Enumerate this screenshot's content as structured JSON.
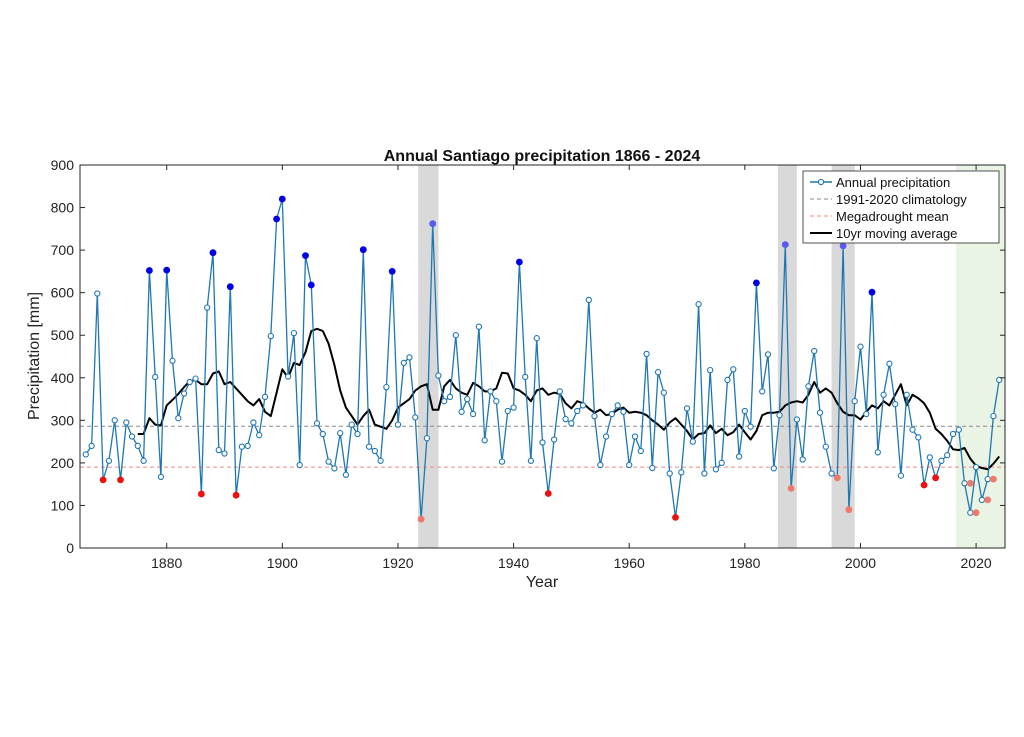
{
  "chart_data": {
    "type": "line",
    "title": "Annual Santiago precipitation 1866 - 2024",
    "xlabel": "Year",
    "ylabel": "Precipitation [mm]",
    "xlim": [
      1865,
      2025
    ],
    "ylim": [
      0,
      900
    ],
    "xticks": [
      1880,
      1900,
      1920,
      1940,
      1960,
      1980,
      2000,
      2020
    ],
    "yticks": [
      0,
      100,
      200,
      300,
      400,
      500,
      600,
      700,
      800,
      900
    ],
    "grid": false,
    "legend_position": "top-right",
    "legend": [
      "Annual precipitation",
      "1991-2020 climatology",
      "Megadrought mean",
      "10yr moving average"
    ],
    "climatology_mm": 286,
    "megadrought_mean_mm": 190,
    "shaded_periods": [
      {
        "start": 1923.5,
        "end": 1927,
        "color": "#d9d9d9"
      },
      {
        "start": 1985.7,
        "end": 1989,
        "color": "#d9d9d9"
      },
      {
        "start": 1995,
        "end": 1999,
        "color": "#d9d9d9"
      },
      {
        "start": 2016.5,
        "end": 2025,
        "color": "#e9f4e4"
      }
    ],
    "years": [
      1866,
      1867,
      1868,
      1869,
      1870,
      1871,
      1872,
      1873,
      1874,
      1875,
      1876,
      1877,
      1878,
      1879,
      1880,
      1881,
      1882,
      1883,
      1884,
      1885,
      1886,
      1887,
      1888,
      1889,
      1890,
      1891,
      1892,
      1893,
      1894,
      1895,
      1896,
      1897,
      1898,
      1899,
      1900,
      1901,
      1902,
      1903,
      1904,
      1905,
      1906,
      1907,
      1908,
      1909,
      1910,
      1911,
      1912,
      1913,
      1914,
      1915,
      1916,
      1917,
      1918,
      1919,
      1920,
      1921,
      1922,
      1923,
      1924,
      1925,
      1926,
      1927,
      1928,
      1929,
      1930,
      1931,
      1932,
      1933,
      1934,
      1935,
      1936,
      1937,
      1938,
      1939,
      1940,
      1941,
      1942,
      1943,
      1944,
      1945,
      1946,
      1947,
      1948,
      1949,
      1950,
      1951,
      1952,
      1953,
      1954,
      1955,
      1956,
      1957,
      1958,
      1959,
      1960,
      1961,
      1962,
      1963,
      1964,
      1965,
      1966,
      1967,
      1968,
      1969,
      1970,
      1971,
      1972,
      1973,
      1974,
      1975,
      1976,
      1977,
      1978,
      1979,
      1980,
      1981,
      1982,
      1983,
      1984,
      1985,
      1986,
      1987,
      1988,
      1989,
      1990,
      1991,
      1992,
      1993,
      1994,
      1995,
      1996,
      1997,
      1998,
      1999,
      2000,
      2001,
      2002,
      2003,
      2004,
      2005,
      2006,
      2007,
      2008,
      2009,
      2010,
      2011,
      2012,
      2013,
      2014,
      2015,
      2016,
      2017,
      2018,
      2019,
      2020,
      2021,
      2022,
      2023,
      2024
    ],
    "precipitation": [
      220,
      240,
      598,
      160,
      205,
      300,
      160,
      295,
      262,
      240,
      205,
      652,
      402,
      167,
      653,
      440,
      305,
      363,
      390,
      398,
      127,
      565,
      694,
      230,
      222,
      614,
      124,
      238,
      240,
      295,
      265,
      355,
      498,
      773,
      820,
      403,
      505,
      195,
      687,
      618,
      293,
      268,
      203,
      187,
      270,
      172,
      290,
      268,
      701,
      238,
      228,
      205,
      378,
      650,
      290,
      435,
      448,
      307,
      68,
      258,
      762,
      405,
      345,
      355,
      500,
      320,
      350,
      315,
      520,
      253,
      368,
      345,
      203,
      322,
      330,
      672,
      402,
      205,
      493,
      248,
      128,
      255,
      368,
      303,
      293,
      322,
      335,
      583,
      310,
      195,
      262,
      315,
      335,
      320,
      195,
      262,
      228,
      456,
      188,
      413,
      365,
      175,
      72,
      178,
      328,
      250,
      573,
      175,
      418,
      185,
      200,
      395,
      420,
      215,
      322,
      285,
      623,
      368,
      455,
      187,
      312,
      713,
      140,
      302,
      208,
      380,
      463,
      318,
      238,
      175,
      165,
      710,
      90,
      345,
      473,
      315,
      601,
      225,
      360,
      433,
      338,
      170,
      360,
      278,
      260,
      148,
      213,
      165,
      205,
      218,
      268,
      278,
      152,
      83,
      190,
      113,
      162,
      310,
      395
    ],
    "highlighted_points": [
      {
        "year": 1869,
        "value": 160,
        "kind": "dry"
      },
      {
        "year": 1872,
        "value": 160,
        "kind": "dry"
      },
      {
        "year": 1877,
        "value": 652,
        "kind": "wet"
      },
      {
        "year": 1880,
        "value": 653,
        "kind": "wet"
      },
      {
        "year": 1886,
        "value": 127,
        "kind": "dry"
      },
      {
        "year": 1888,
        "value": 694,
        "kind": "wet"
      },
      {
        "year": 1891,
        "value": 614,
        "kind": "wet"
      },
      {
        "year": 1892,
        "value": 124,
        "kind": "dry"
      },
      {
        "year": 1899,
        "value": 773,
        "kind": "wet"
      },
      {
        "year": 1900,
        "value": 820,
        "kind": "wet"
      },
      {
        "year": 1904,
        "value": 687,
        "kind": "wet"
      },
      {
        "year": 1905,
        "value": 618,
        "kind": "wet"
      },
      {
        "year": 1914,
        "value": 701,
        "kind": "wet"
      },
      {
        "year": 1919,
        "value": 650,
        "kind": "wet"
      },
      {
        "year": 1924,
        "value": 68,
        "kind": "dry"
      },
      {
        "year": 1926,
        "value": 762,
        "kind": "wet"
      },
      {
        "year": 1941,
        "value": 672,
        "kind": "wet"
      },
      {
        "year": 1946,
        "value": 128,
        "kind": "dry"
      },
      {
        "year": 1968,
        "value": 72,
        "kind": "dry"
      },
      {
        "year": 1982,
        "value": 623,
        "kind": "wet"
      },
      {
        "year": 1987,
        "value": 713,
        "kind": "wet"
      },
      {
        "year": 1988,
        "value": 140,
        "kind": "dry"
      },
      {
        "year": 1996,
        "value": 165,
        "kind": "dry"
      },
      {
        "year": 1997,
        "value": 710,
        "kind": "wet"
      },
      {
        "year": 1998,
        "value": 90,
        "kind": "dry"
      },
      {
        "year": 2002,
        "value": 601,
        "kind": "wet"
      },
      {
        "year": 2011,
        "value": 148,
        "kind": "dry"
      },
      {
        "year": 2013,
        "value": 165,
        "kind": "dry"
      },
      {
        "year": 2019,
        "value": 152,
        "kind": "dry"
      },
      {
        "year": 2020,
        "value": 83,
        "kind": "dry"
      },
      {
        "year": 2022,
        "value": 113,
        "kind": "dry"
      },
      {
        "year": 2023,
        "value": 162,
        "kind": "dry"
      }
    ],
    "moving_average": {
      "years": [
        1875,
        1876,
        1877,
        1878,
        1879,
        1880,
        1881,
        1882,
        1883,
        1884,
        1885,
        1886,
        1887,
        1888,
        1889,
        1890,
        1891,
        1892,
        1893,
        1894,
        1895,
        1896,
        1897,
        1898,
        1899,
        1900,
        1901,
        1902,
        1903,
        1904,
        1905,
        1906,
        1907,
        1908,
        1909,
        1910,
        1911,
        1912,
        1913,
        1914,
        1915,
        1916,
        1917,
        1918,
        1919,
        1920,
        1921,
        1922,
        1923,
        1924,
        1925,
        1926,
        1927,
        1928,
        1929,
        1930,
        1931,
        1932,
        1933,
        1934,
        1935,
        1936,
        1937,
        1938,
        1939,
        1940,
        1941,
        1942,
        1943,
        1944,
        1945,
        1946,
        1947,
        1948,
        1949,
        1950,
        1951,
        1952,
        1953,
        1954,
        1955,
        1956,
        1957,
        1958,
        1959,
        1960,
        1961,
        1962,
        1963,
        1964,
        1965,
        1966,
        1967,
        1968,
        1969,
        1970,
        1971,
        1972,
        1973,
        1974,
        1975,
        1976,
        1977,
        1978,
        1979,
        1980,
        1981,
        1982,
        1983,
        1984,
        1985,
        1986,
        1987,
        1988,
        1989,
        1990,
        1991,
        1992,
        1993,
        1994,
        1995,
        1996,
        1997,
        1998,
        1999,
        2000,
        2001,
        2002,
        2003,
        2004,
        2005,
        2006,
        2007,
        2008,
        2009,
        2010,
        2011,
        2012,
        2013,
        2014,
        2015,
        2016,
        2017,
        2018,
        2019,
        2020,
        2021,
        2022,
        2023,
        2024
      ],
      "values": [
        268,
        268,
        305,
        290,
        288,
        335,
        348,
        362,
        378,
        392,
        395,
        385,
        385,
        410,
        415,
        385,
        390,
        375,
        360,
        345,
        335,
        350,
        320,
        310,
        365,
        420,
        400,
        435,
        430,
        460,
        510,
        515,
        510,
        480,
        430,
        370,
        330,
        310,
        290,
        310,
        325,
        290,
        285,
        280,
        300,
        330,
        340,
        350,
        370,
        380,
        385,
        325,
        325,
        380,
        395,
        375,
        365,
        360,
        388,
        380,
        368,
        368,
        375,
        412,
        410,
        375,
        370,
        360,
        345,
        370,
        375,
        360,
        365,
        362,
        340,
        328,
        345,
        340,
        328,
        318,
        325,
        312,
        315,
        325,
        330,
        318,
        320,
        318,
        312,
        300,
        290,
        278,
        295,
        305,
        290,
        275,
        255,
        268,
        270,
        288,
        270,
        280,
        265,
        272,
        290,
        272,
        255,
        275,
        312,
        318,
        318,
        320,
        335,
        342,
        345,
        342,
        360,
        390,
        365,
        375,
        365,
        340,
        320,
        312,
        312,
        302,
        320,
        335,
        328,
        345,
        335,
        360,
        385,
        335,
        360,
        352,
        340,
        318,
        280,
        268,
        252,
        232,
        230,
        235,
        210,
        193,
        188,
        185,
        198,
        215
      ]
    }
  }
}
